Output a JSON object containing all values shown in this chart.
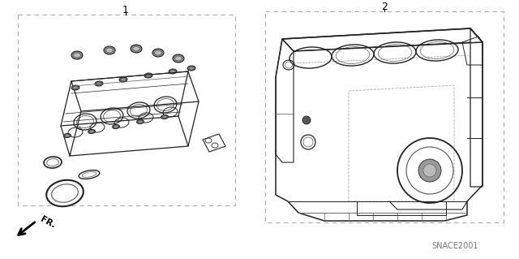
{
  "bg_color": "#ffffff",
  "label1": "1",
  "label2": "2",
  "part_code": "SNACE2001",
  "fr_label": "FR.",
  "lc": "#aaaaaa",
  "black": "#000000",
  "dark": "#222222",
  "mid": "#555555",
  "light": "#888888"
}
